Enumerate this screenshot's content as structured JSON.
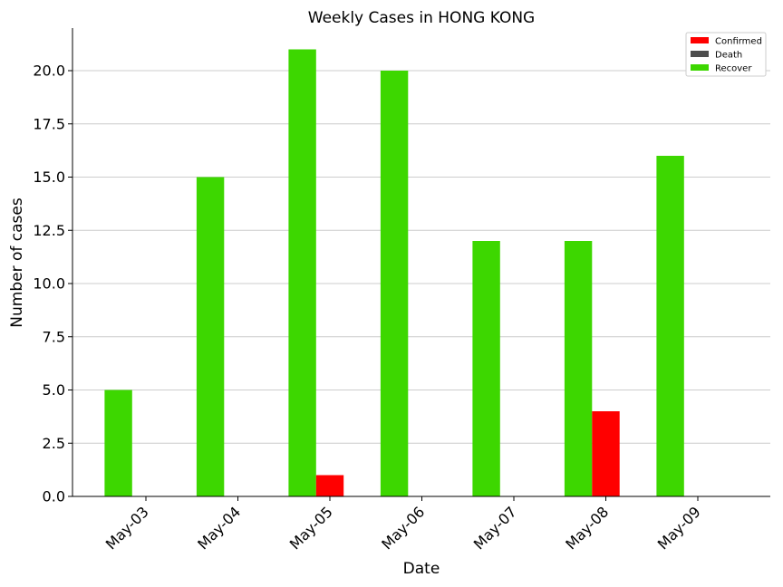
{
  "chart_data": {
    "type": "bar",
    "title": "Weekly Cases in HONG KONG",
    "xlabel": "Date",
    "ylabel": "Number of cases",
    "categories": [
      "May-03",
      "May-04",
      "May-05",
      "May-06",
      "May-07",
      "May-08",
      "May-09"
    ],
    "series": [
      {
        "name": "Confirmed",
        "color": "#ff0000",
        "values": [
          0,
          0,
          1,
          0,
          0,
          4,
          0
        ]
      },
      {
        "name": "Death",
        "color": "#4d4d4d",
        "values": [
          0,
          0,
          0,
          0,
          0,
          0,
          0
        ]
      },
      {
        "name": "Recover",
        "color": "#3dd700",
        "values": [
          5,
          15,
          21,
          20,
          12,
          12,
          16
        ]
      }
    ],
    "ylim": [
      0,
      22
    ],
    "yticks": [
      "0.0",
      "2.5",
      "5.0",
      "7.5",
      "10.0",
      "12.5",
      "15.0",
      "17.5",
      "20.0"
    ],
    "ytick_values": [
      0,
      2.5,
      5,
      7.5,
      10,
      12.5,
      15,
      17.5,
      20
    ],
    "grid": "horizontal",
    "legend_position": "top-right"
  }
}
